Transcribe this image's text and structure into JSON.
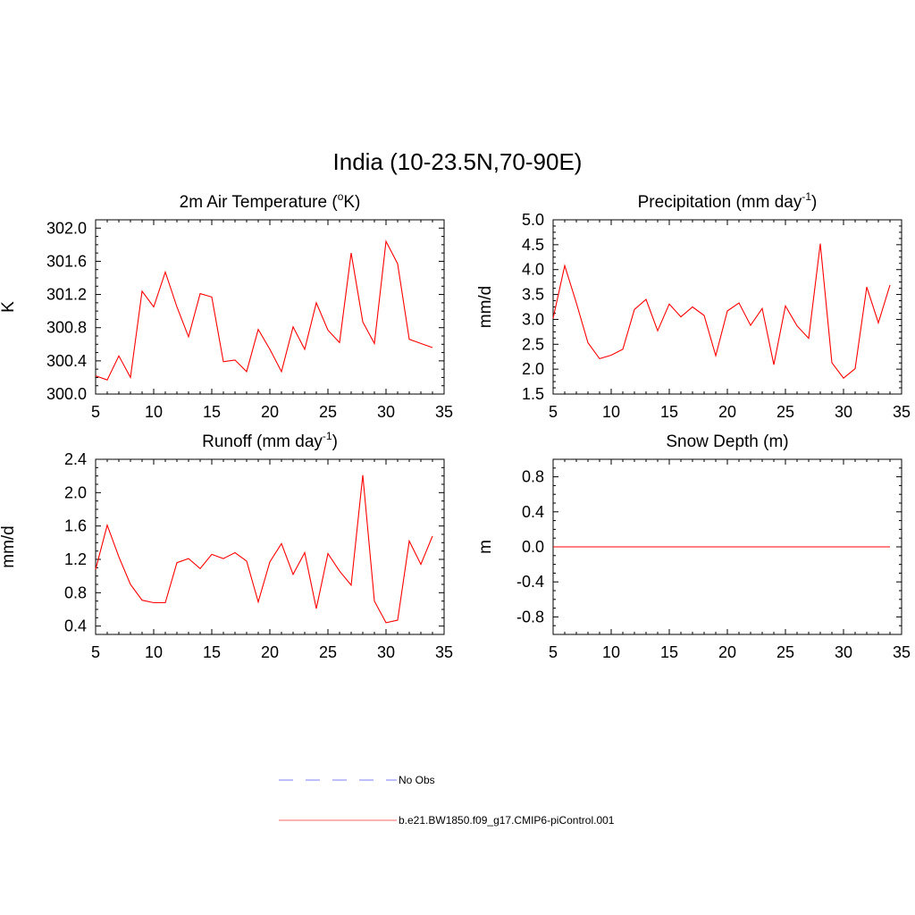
{
  "main_title": "India (10-23.5N,70-90E)",
  "legend": {
    "entries": [
      {
        "label": "No Obs",
        "color": "#9999ff",
        "style": "dashed"
      },
      {
        "label": "b.e21.BW1850.f09_g17.CMIP6-piControl.001",
        "color": "#ff0000",
        "style": "solid"
      }
    ]
  },
  "chart_data": [
    {
      "type": "line",
      "title": "2m Air Temperature (",
      "title_sup": "o",
      "title_end": "K)",
      "ylabel": "K",
      "xlim": [
        5,
        35
      ],
      "ylim": [
        300.0,
        302.1
      ],
      "xticks": [
        5,
        10,
        15,
        20,
        25,
        30,
        35
      ],
      "yticks": [
        300.0,
        300.4,
        300.8,
        301.2,
        301.6,
        302.0
      ],
      "ytick_labels": [
        "300.0",
        "300.4",
        "300.8",
        "301.2",
        "301.6",
        "302.0"
      ],
      "series": [
        {
          "color": "#ff0000",
          "x": [
            5,
            6,
            7,
            8,
            9,
            10,
            11,
            12,
            13,
            14,
            15,
            16,
            17,
            18,
            19,
            20,
            21,
            22,
            23,
            24,
            25,
            26,
            27,
            28,
            29,
            30,
            31,
            32,
            33,
            34
          ],
          "y": [
            300.22,
            300.17,
            300.46,
            300.2,
            301.24,
            301.05,
            301.47,
            301.05,
            300.69,
            301.21,
            301.17,
            300.39,
            300.41,
            300.27,
            300.78,
            300.54,
            300.27,
            300.81,
            300.54,
            301.1,
            300.77,
            300.62,
            301.7,
            300.87,
            300.61,
            301.84,
            301.57,
            300.66,
            300.61,
            300.56
          ]
        }
      ]
    },
    {
      "type": "line",
      "title": "Precipitation (mm day",
      "title_sup": "-1",
      "title_end": ")",
      "ylabel": "mm/d",
      "xlim": [
        5,
        35
      ],
      "ylim": [
        1.5,
        5.0
      ],
      "xticks": [
        5,
        10,
        15,
        20,
        25,
        30,
        35
      ],
      "yticks": [
        1.5,
        2.0,
        2.5,
        3.0,
        3.5,
        4.0,
        4.5,
        5.0
      ],
      "ytick_labels": [
        "1.5",
        "2.0",
        "2.5",
        "3.0",
        "3.5",
        "4.0",
        "4.5",
        "5.0"
      ],
      "series": [
        {
          "color": "#ff0000",
          "x": [
            5,
            6,
            7,
            8,
            9,
            10,
            11,
            12,
            13,
            14,
            15,
            16,
            17,
            18,
            19,
            20,
            21,
            22,
            23,
            24,
            25,
            26,
            27,
            28,
            29,
            30,
            31,
            32,
            33,
            34
          ],
          "y": [
            3.02,
            4.08,
            3.33,
            2.53,
            2.21,
            2.28,
            2.4,
            3.2,
            3.4,
            2.77,
            3.31,
            3.05,
            3.25,
            3.08,
            2.27,
            3.17,
            3.33,
            2.88,
            3.22,
            2.09,
            3.27,
            2.87,
            2.62,
            4.52,
            2.13,
            1.82,
            2.01,
            3.65,
            2.93,
            3.69
          ]
        }
      ]
    },
    {
      "type": "line",
      "title": "Runoff (mm day",
      "title_sup": "-1",
      "title_end": ")",
      "ylabel": "mm/d",
      "xlim": [
        5,
        35
      ],
      "ylim": [
        0.3,
        2.4
      ],
      "xticks": [
        5,
        10,
        15,
        20,
        25,
        30,
        35
      ],
      "yticks": [
        0.4,
        0.8,
        1.2,
        1.6,
        2.0,
        2.4
      ],
      "ytick_labels": [
        "0.4",
        "0.8",
        "1.2",
        "1.6",
        "2.0",
        "2.4"
      ],
      "series": [
        {
          "color": "#ff0000",
          "x": [
            5,
            6,
            7,
            8,
            9,
            10,
            11,
            12,
            13,
            14,
            15,
            16,
            17,
            18,
            19,
            20,
            21,
            22,
            23,
            24,
            25,
            26,
            27,
            28,
            29,
            30,
            31,
            32,
            33,
            34
          ],
          "y": [
            1.08,
            1.61,
            1.23,
            0.9,
            0.71,
            0.68,
            0.68,
            1.16,
            1.21,
            1.09,
            1.26,
            1.21,
            1.28,
            1.18,
            0.69,
            1.17,
            1.39,
            1.02,
            1.28,
            0.61,
            1.27,
            1.06,
            0.89,
            2.21,
            0.7,
            0.44,
            0.47,
            1.42,
            1.14,
            1.48
          ]
        }
      ]
    },
    {
      "type": "line",
      "title": "Snow Depth (m)",
      "title_sup": "",
      "title_end": "",
      "ylabel": "m",
      "xlim": [
        5,
        35
      ],
      "ylim": [
        -1.0,
        1.0
      ],
      "xticks": [
        5,
        10,
        15,
        20,
        25,
        30,
        35
      ],
      "yticks": [
        -0.8,
        -0.4,
        0.0,
        0.4,
        0.8
      ],
      "ytick_labels": [
        "-0.8",
        "-0.4",
        "0.0",
        "0.4",
        "0.8"
      ],
      "series": [
        {
          "color": "#ff0000",
          "x": [
            5,
            6,
            7,
            8,
            9,
            10,
            11,
            12,
            13,
            14,
            15,
            16,
            17,
            18,
            19,
            20,
            21,
            22,
            23,
            24,
            25,
            26,
            27,
            28,
            29,
            30,
            31,
            32,
            33,
            34
          ],
          "y": [
            0,
            0,
            0,
            0,
            0,
            0,
            0,
            0,
            0,
            0,
            0,
            0,
            0,
            0,
            0,
            0,
            0,
            0,
            0,
            0,
            0,
            0,
            0,
            0,
            0,
            0,
            0,
            0,
            0,
            0
          ]
        }
      ]
    }
  ]
}
